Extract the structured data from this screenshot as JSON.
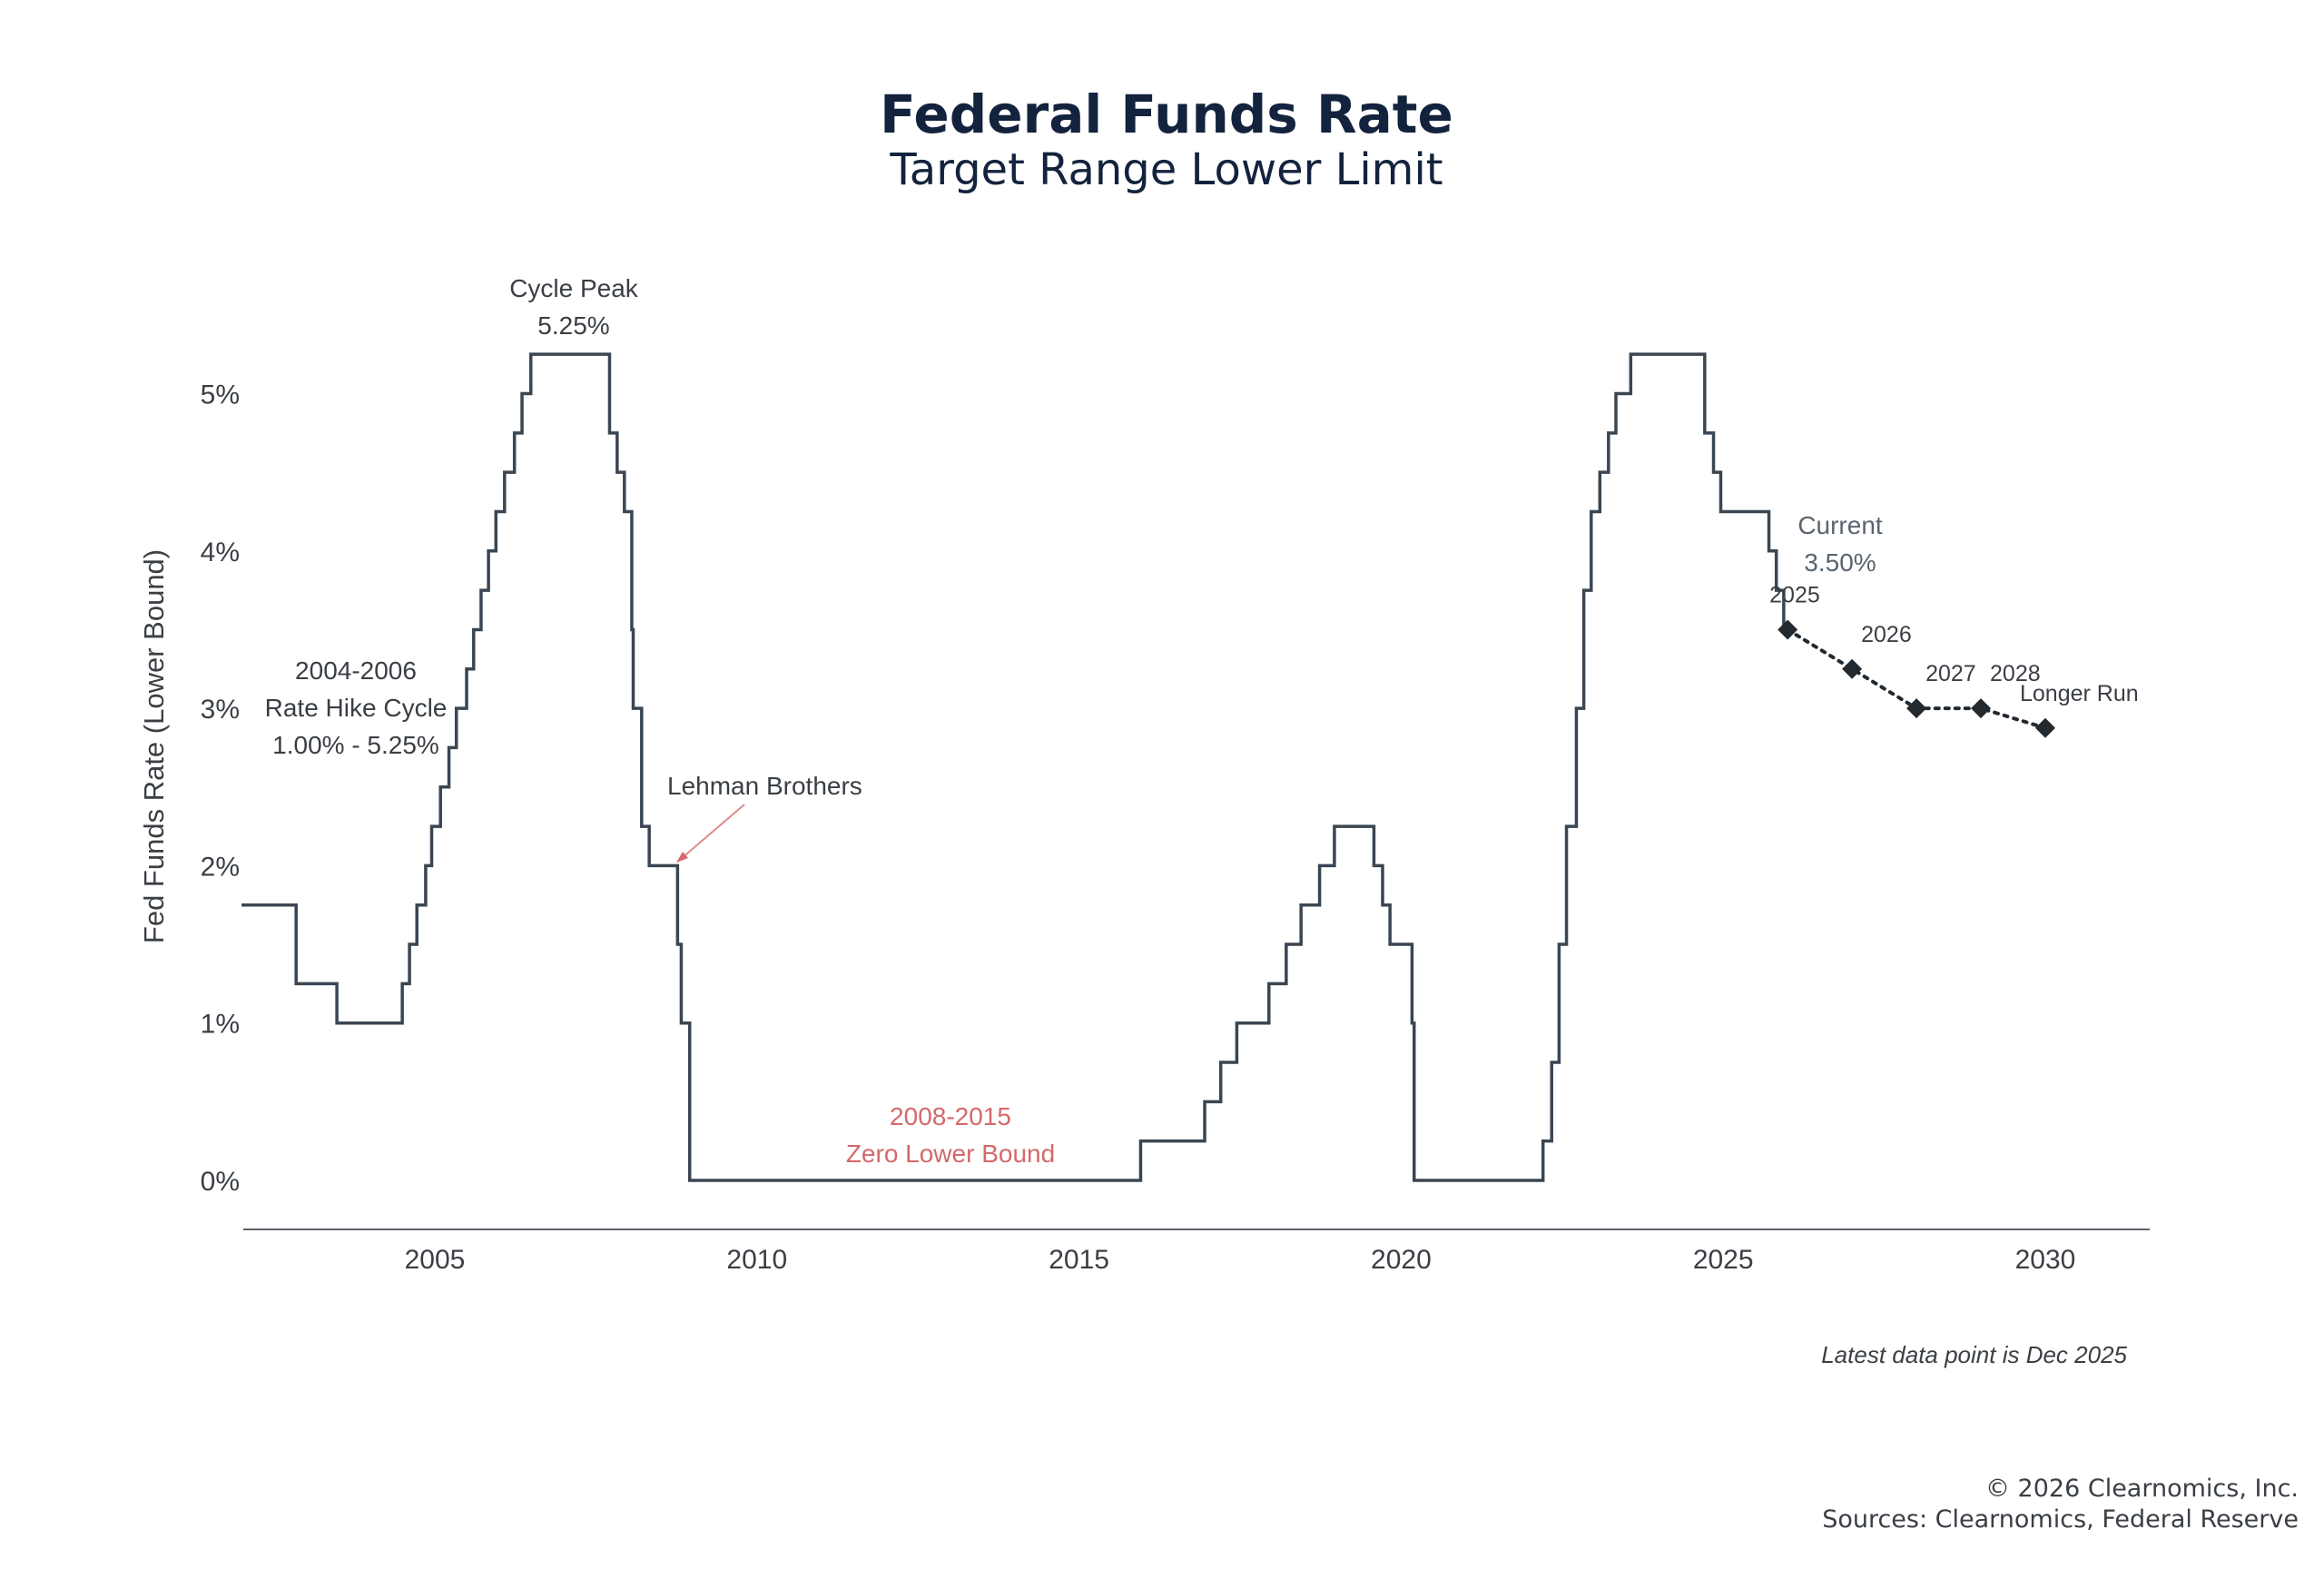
{
  "chart_data": {
    "type": "line",
    "title": "Federal Funds Rate",
    "subtitle": "Target Range Lower Limit",
    "ylabel": "Fed Funds Rate (Lower Bound)",
    "xlabel": "",
    "xlim": [
      2002,
      2031.6
    ],
    "ylim": [
      -0.3,
      5.5
    ],
    "grid": false,
    "x_ticks": [
      "2005",
      "2010",
      "2015",
      "2020",
      "2025",
      "2030"
    ],
    "y_ticks": [
      "0%",
      "1%",
      "2%",
      "3%",
      "4%",
      "5%"
    ],
    "colors": {
      "line": "#3a4652",
      "projection": "#22292f",
      "highlight": "#d4696b"
    },
    "series": [
      {
        "style": "step",
        "points": [
          [
            "2002-01-01",
            1.75
          ],
          [
            "2002-11-06",
            1.25
          ],
          [
            "2003-06-25",
            1.0
          ],
          [
            "2004-06-30",
            1.25
          ],
          [
            "2004-08-10",
            1.5
          ],
          [
            "2004-09-21",
            1.75
          ],
          [
            "2004-11-10",
            2.0
          ],
          [
            "2004-12-14",
            2.25
          ],
          [
            "2005-02-02",
            2.5
          ],
          [
            "2005-03-22",
            2.75
          ],
          [
            "2005-05-03",
            3.0
          ],
          [
            "2005-06-30",
            3.25
          ],
          [
            "2005-08-09",
            3.5
          ],
          [
            "2005-09-20",
            3.75
          ],
          [
            "2005-11-01",
            4.0
          ],
          [
            "2005-12-13",
            4.25
          ],
          [
            "2006-01-31",
            4.5
          ],
          [
            "2006-03-28",
            4.75
          ],
          [
            "2006-05-10",
            5.0
          ],
          [
            "2006-06-29",
            5.25
          ],
          [
            "2007-09-18",
            4.75
          ],
          [
            "2007-10-31",
            4.5
          ],
          [
            "2007-12-11",
            4.25
          ],
          [
            "2008-01-22",
            3.5
          ],
          [
            "2008-01-30",
            3.0
          ],
          [
            "2008-03-18",
            2.25
          ],
          [
            "2008-04-30",
            2.0
          ],
          [
            "2008-10-08",
            1.5
          ],
          [
            "2008-10-29",
            1.0
          ],
          [
            "2008-12-16",
            0.0
          ],
          [
            "2015-12-16",
            0.25
          ],
          [
            "2016-12-14",
            0.5
          ],
          [
            "2017-03-15",
            0.75
          ],
          [
            "2017-06-14",
            1.0
          ],
          [
            "2017-12-13",
            1.25
          ],
          [
            "2018-03-21",
            1.5
          ],
          [
            "2018-06-13",
            1.75
          ],
          [
            "2018-09-26",
            2.0
          ],
          [
            "2018-12-19",
            2.25
          ],
          [
            "2019-07-31",
            2.0
          ],
          [
            "2019-09-18",
            1.75
          ],
          [
            "2019-10-30",
            1.5
          ],
          [
            "2020-03-03",
            1.0
          ],
          [
            "2020-03-15",
            0.0
          ],
          [
            "2022-03-16",
            0.25
          ],
          [
            "2022-05-04",
            0.75
          ],
          [
            "2022-06-15",
            1.5
          ],
          [
            "2022-07-27",
            2.25
          ],
          [
            "2022-09-21",
            3.0
          ],
          [
            "2022-11-02",
            3.75
          ],
          [
            "2022-12-14",
            4.25
          ],
          [
            "2023-02-01",
            4.5
          ],
          [
            "2023-03-22",
            4.75
          ],
          [
            "2023-05-03",
            5.0
          ],
          [
            "2023-07-26",
            5.25
          ],
          [
            "2024-09-18",
            4.75
          ],
          [
            "2024-11-07",
            4.5
          ],
          [
            "2024-12-18",
            4.25
          ],
          [
            "2025-09-17",
            4.0
          ],
          [
            "2025-10-29",
            3.75
          ],
          [
            "2025-12-10",
            3.5
          ],
          [
            "2025-12-31",
            3.5
          ]
        ]
      },
      {
        "style": "dotted-markers",
        "points": [
          {
            "label": "2025",
            "x": "2026-01-01",
            "y": 3.5
          },
          {
            "label": "2026",
            "x": "2027-01-01",
            "y": 3.25
          },
          {
            "label": "2027",
            "x": "2028-01-01",
            "y": 3.0
          },
          {
            "label": "2028",
            "x": "2029-01-01",
            "y": 3.0
          },
          {
            "label": "Longer Run",
            "x": "2030-01-01",
            "y": 2.875
          }
        ]
      }
    ],
    "annotations": {
      "cycle_peak": [
        "Cycle Peak",
        "5.25%"
      ],
      "hike_cycle": [
        "2004-2006",
        "Rate Hike Cycle",
        "1.00% - 5.25%"
      ],
      "lehman": "Lehman Brothers",
      "zlb": [
        "2008-2015",
        "Zero Lower Bound"
      ],
      "current": [
        "Current",
        "3.50%"
      ]
    },
    "note": "Latest data point is Dec 2025"
  },
  "footer": {
    "copyright": "© 2026 Clearnomics, Inc.",
    "sources": "Sources: Clearnomics, Federal Reserve"
  }
}
